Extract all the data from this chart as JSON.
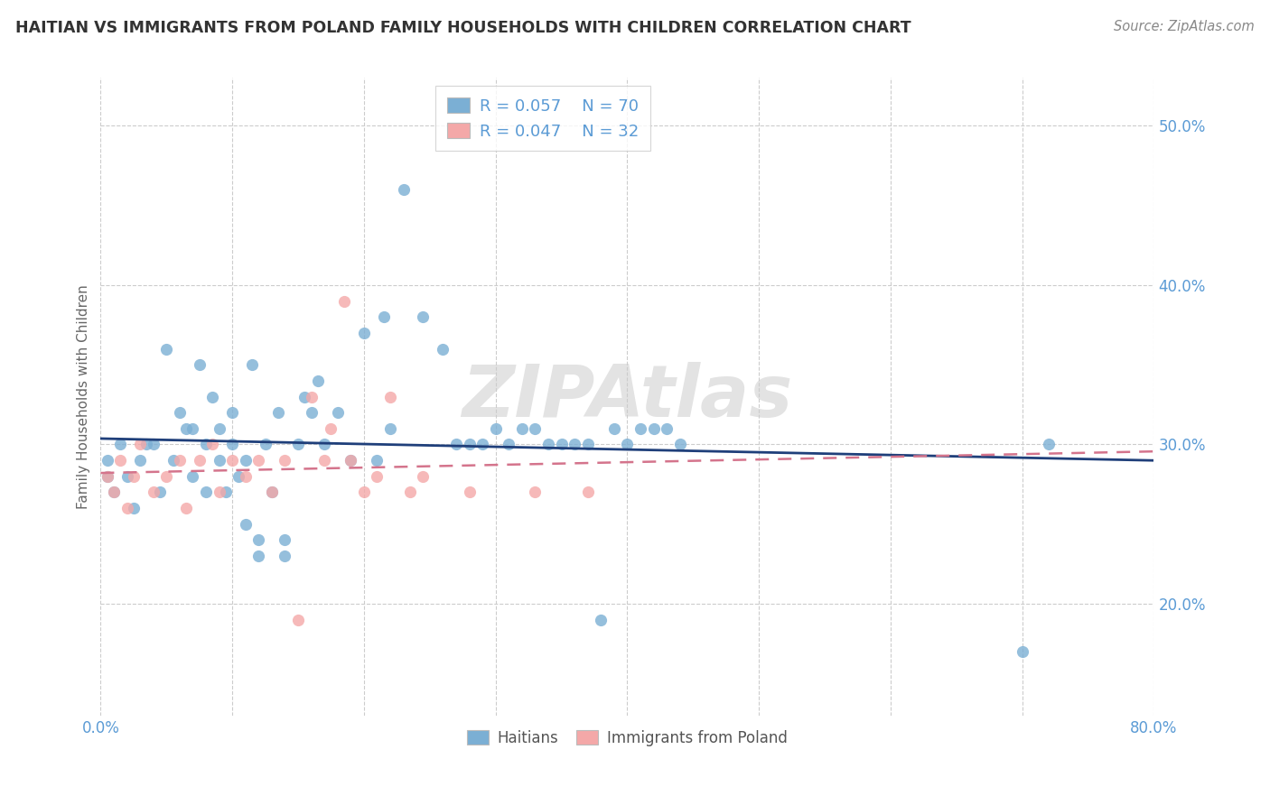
{
  "title": "HAITIAN VS IMMIGRANTS FROM POLAND FAMILY HOUSEHOLDS WITH CHILDREN CORRELATION CHART",
  "source": "Source: ZipAtlas.com",
  "ylabel": "Family Households with Children",
  "xlim": [
    0.0,
    0.8
  ],
  "ylim": [
    0.13,
    0.53
  ],
  "y_ticks": [
    0.2,
    0.3,
    0.4,
    0.5
  ],
  "y_tick_labels": [
    "20.0%",
    "30.0%",
    "40.0%",
    "50.0%"
  ],
  "legend_labels": [
    "Haitians",
    "Immigrants from Poland"
  ],
  "blue_color": "#7BAFD4",
  "pink_color": "#F4A8A8",
  "blue_line_color": "#1F3F7A",
  "pink_line_color": "#D4748C",
  "axis_label_color": "#5B9BD5",
  "watermark": "ZIPAtlas",
  "legend_R1": "R = 0.057",
  "legend_N1": "N = 70",
  "legend_R2": "R = 0.047",
  "legend_N2": "N = 32",
  "haitian_x": [
    0.005,
    0.005,
    0.01,
    0.015,
    0.02,
    0.025,
    0.03,
    0.035,
    0.04,
    0.045,
    0.05,
    0.055,
    0.06,
    0.065,
    0.07,
    0.07,
    0.075,
    0.08,
    0.08,
    0.085,
    0.09,
    0.09,
    0.095,
    0.1,
    0.1,
    0.105,
    0.11,
    0.11,
    0.115,
    0.12,
    0.12,
    0.125,
    0.13,
    0.135,
    0.14,
    0.14,
    0.15,
    0.155,
    0.16,
    0.165,
    0.17,
    0.18,
    0.19,
    0.2,
    0.21,
    0.215,
    0.22,
    0.23,
    0.245,
    0.26,
    0.27,
    0.28,
    0.29,
    0.3,
    0.31,
    0.32,
    0.33,
    0.34,
    0.35,
    0.36,
    0.37,
    0.38,
    0.39,
    0.4,
    0.41,
    0.42,
    0.43,
    0.44,
    0.7,
    0.72
  ],
  "haitian_y": [
    0.28,
    0.29,
    0.27,
    0.3,
    0.28,
    0.26,
    0.29,
    0.3,
    0.3,
    0.27,
    0.36,
    0.29,
    0.32,
    0.31,
    0.28,
    0.31,
    0.35,
    0.27,
    0.3,
    0.33,
    0.29,
    0.31,
    0.27,
    0.3,
    0.32,
    0.28,
    0.25,
    0.29,
    0.35,
    0.23,
    0.24,
    0.3,
    0.27,
    0.32,
    0.24,
    0.23,
    0.3,
    0.33,
    0.32,
    0.34,
    0.3,
    0.32,
    0.29,
    0.37,
    0.29,
    0.38,
    0.31,
    0.46,
    0.38,
    0.36,
    0.3,
    0.3,
    0.3,
    0.31,
    0.3,
    0.31,
    0.31,
    0.3,
    0.3,
    0.3,
    0.3,
    0.19,
    0.31,
    0.3,
    0.31,
    0.31,
    0.31,
    0.3,
    0.17,
    0.3
  ],
  "poland_x": [
    0.005,
    0.01,
    0.015,
    0.02,
    0.025,
    0.03,
    0.04,
    0.05,
    0.06,
    0.065,
    0.075,
    0.085,
    0.09,
    0.1,
    0.11,
    0.12,
    0.13,
    0.14,
    0.15,
    0.16,
    0.17,
    0.175,
    0.185,
    0.19,
    0.2,
    0.21,
    0.22,
    0.235,
    0.245,
    0.28,
    0.33,
    0.37
  ],
  "poland_y": [
    0.28,
    0.27,
    0.29,
    0.26,
    0.28,
    0.3,
    0.27,
    0.28,
    0.29,
    0.26,
    0.29,
    0.3,
    0.27,
    0.29,
    0.28,
    0.29,
    0.27,
    0.29,
    0.19,
    0.33,
    0.29,
    0.31,
    0.39,
    0.29,
    0.27,
    0.28,
    0.33,
    0.27,
    0.28,
    0.27,
    0.27,
    0.27
  ]
}
